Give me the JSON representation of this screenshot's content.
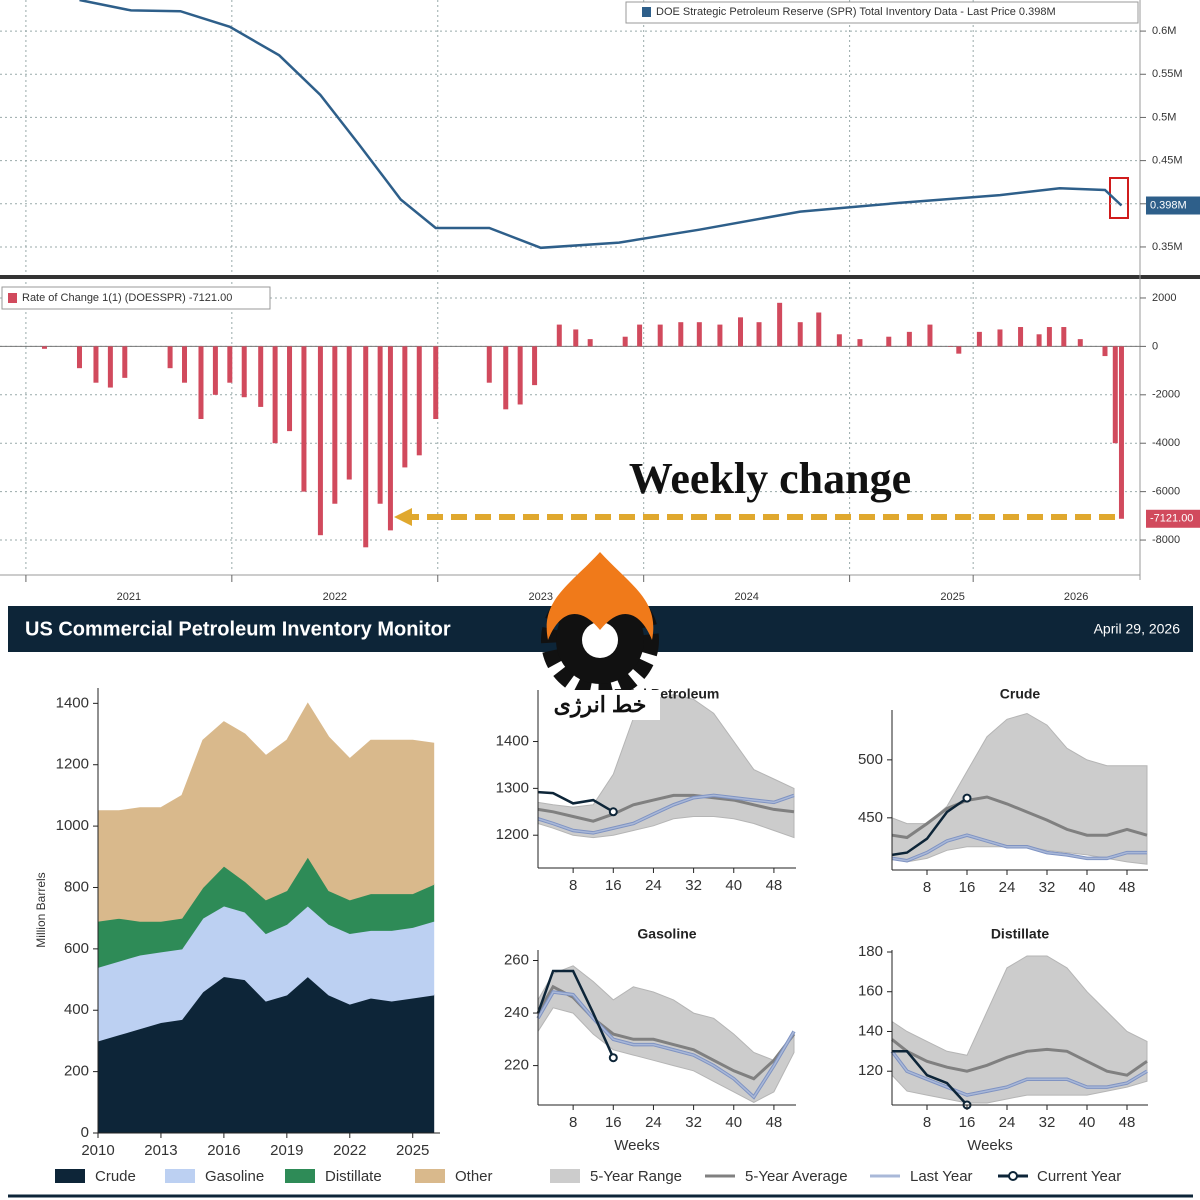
{
  "header": {
    "title": "US Commercial Petroleum Inventory Monitor",
    "date": "April 29, 2026"
  },
  "watermark": "خط انرژی",
  "chart_data": [
    {
      "type": "line",
      "x": [
        2021.26,
        2021.51,
        2021.75,
        2021.99,
        2022.23,
        2022.43,
        2022.62,
        2022.82,
        2022.99,
        2023.25,
        2023.5,
        2023.88,
        2024.27,
        2024.76,
        2025.24,
        2025.73,
        2026.02,
        2026.24,
        2026.32
      ],
      "series": [
        {
          "name": "DOE Strategic Petroleum Reserve (SPR) Total Inventory Data - Last Price 0.398M",
          "color": "#2e5f8a",
          "values": [
            0.636,
            0.624,
            0.623,
            0.605,
            0.572,
            0.526,
            0.468,
            0.405,
            0.372,
            0.372,
            0.349,
            0.355,
            0.37,
            0.391,
            0.401,
            0.41,
            0.418,
            0.416,
            0.398
          ],
          "value_labels": [
            null,
            null,
            null,
            null,
            null,
            null,
            null,
            null,
            null,
            null,
            null,
            null,
            null,
            null,
            null,
            null,
            null,
            null,
            "0.398M"
          ]
        }
      ],
      "xlim": [
        2020.874,
        2026.41
      ],
      "ylim": [
        0.321,
        0.636
      ],
      "yticks": [
        {
          "value": 0.35,
          "label": "0.35M"
        },
        {
          "value": 0.4,
          "label": "0.4M"
        },
        {
          "value": 0.45,
          "label": "0.45M"
        },
        {
          "value": 0.5,
          "label": "0.5M"
        },
        {
          "value": 0.55,
          "label": "0.55M"
        },
        {
          "value": 0.6,
          "label": "0.6M"
        }
      ],
      "grid": true
    },
    {
      "type": "bar",
      "x": [
        2021.09,
        2021.26,
        2021.34,
        2021.41,
        2021.48,
        2021.7,
        2021.77,
        2021.85,
        2021.92,
        2021.99,
        2022.06,
        2022.14,
        2022.21,
        2022.28,
        2022.35,
        2022.43,
        2022.5,
        2022.57,
        2022.65,
        2022.72,
        2022.77,
        2022.84,
        2022.91,
        2022.99,
        2023.25,
        2023.33,
        2023.4,
        2023.47,
        2023.59,
        2023.67,
        2023.74,
        2023.91,
        2023.98,
        2024.08,
        2024.18,
        2024.27,
        2024.37,
        2024.47,
        2024.56,
        2024.66,
        2024.76,
        2024.85,
        2024.95,
        2025.05,
        2025.19,
        2025.29,
        2025.39,
        2025.49,
        2025.53,
        2025.63,
        2025.73,
        2025.83,
        2025.92,
        2025.97,
        2026.04,
        2026.12,
        2026.24,
        2026.29,
        2026.32
      ],
      "series": [
        {
          "name": "Rate of Change 1(1) (DOESSPR) -7121.00",
          "color": "#d14a5d",
          "values": [
            -100,
            -900,
            -1500,
            -1700,
            -1300,
            -900,
            -1500,
            -3000,
            -2000,
            -1500,
            -2100,
            -2500,
            -4000,
            -3500,
            -6000,
            -7800,
            -6500,
            -5500,
            -8300,
            -6500,
            -7600,
            -5000,
            -4500,
            -3000,
            -1500,
            -2600,
            -2400,
            -1600,
            900,
            700,
            300,
            400,
            900,
            900,
            1000,
            1000,
            900,
            1200,
            1000,
            1800,
            1000,
            1400,
            500,
            300,
            400,
            600,
            900,
            0,
            -300,
            600,
            700,
            800,
            500,
            800,
            800,
            300,
            -400,
            -4000,
            -7121
          ],
          "value_labels": [
            null,
            null,
            null,
            null,
            null,
            null,
            null,
            null,
            null,
            null,
            null,
            null,
            null,
            null,
            null,
            null,
            null,
            null,
            null,
            null,
            null,
            null,
            null,
            null,
            null,
            null,
            null,
            null,
            null,
            null,
            null,
            null,
            null,
            null,
            null,
            null,
            null,
            null,
            null,
            null,
            null,
            null,
            null,
            null,
            null,
            null,
            null,
            null,
            null,
            null,
            null,
            null,
            null,
            null,
            null,
            null,
            null,
            null,
            "-7121.00"
          ]
        }
      ],
      "annotation": "Weekly change",
      "xlim": [
        2020.874,
        2026.41
      ],
      "ylim": [
        -9320,
        2660
      ],
      "xticks": [
        {
          "value": 2021.5,
          "label": "2021"
        },
        {
          "value": 2022.5,
          "label": "2022"
        },
        {
          "value": 2023.5,
          "label": "2023"
        },
        {
          "value": 2024.5,
          "label": "2024"
        },
        {
          "value": 2025.5,
          "label": "2025"
        },
        {
          "value": 2026.1,
          "label": "2026"
        }
      ],
      "yticks": [
        -8000,
        -6000,
        -4000,
        -2000,
        0,
        2000
      ],
      "grid": true
    },
    {
      "type": "stacked_area",
      "y_label": "Million Barrels",
      "x": [
        2010,
        2011,
        2012,
        2013,
        2014,
        2015,
        2016,
        2017,
        2018,
        2019,
        2020,
        2021,
        2022,
        2023,
        2024,
        2025,
        2026
      ],
      "series": [
        {
          "name": "Crude",
          "color": "#0d2538",
          "values": [
            300,
            320,
            340,
            360,
            370,
            460,
            510,
            500,
            430,
            450,
            510,
            450,
            420,
            440,
            430,
            440,
            450
          ]
        },
        {
          "name": "Gasoline",
          "color": "#bcd0f2",
          "values": [
            240,
            240,
            240,
            230,
            230,
            240,
            230,
            220,
            220,
            230,
            230,
            230,
            230,
            220,
            230,
            230,
            240
          ]
        },
        {
          "name": "Distillate",
          "color": "#2e8b57",
          "values": [
            150,
            140,
            110,
            100,
            100,
            100,
            130,
            100,
            110,
            110,
            160,
            110,
            110,
            120,
            120,
            110,
            120
          ]
        },
        {
          "name": "Other",
          "color": "#d9b98c",
          "values": [
            360,
            350,
            370,
            370,
            400,
            480,
            470,
            480,
            470,
            490,
            500,
            500,
            460,
            500,
            500,
            500,
            460
          ]
        }
      ],
      "xlim": [
        2010,
        2026.3
      ],
      "ylim": [
        0,
        1450
      ],
      "xticks": [
        2010,
        2013,
        2016,
        2019,
        2022,
        2025
      ],
      "yticks": [
        0,
        200,
        400,
        600,
        800,
        1000,
        1200,
        1400
      ]
    },
    {
      "type": "band",
      "title": "Total Petroleum",
      "x": [
        1,
        4,
        8,
        12,
        16,
        20,
        24,
        28,
        32,
        36,
        40,
        44,
        48,
        52
      ],
      "series": [
        {
          "name": "5-Year Range",
          "color": "#cccccc",
          "low": [
            1225,
            1215,
            1200,
            1195,
            1200,
            1210,
            1220,
            1235,
            1240,
            1240,
            1235,
            1225,
            1210,
            1195
          ],
          "high": [
            1270,
            1265,
            1260,
            1265,
            1330,
            1450,
            1490,
            1500,
            1490,
            1460,
            1400,
            1340,
            1320,
            1300
          ]
        },
        {
          "name": "5-Year Average",
          "color": "#808080",
          "values": [
            1255,
            1250,
            1240,
            1230,
            1245,
            1265,
            1275,
            1285,
            1285,
            1280,
            1275,
            1265,
            1255,
            1250
          ]
        },
        {
          "name": "Last Year",
          "color": "#a9b8d8",
          "values": [
            1235,
            1225,
            1210,
            1205,
            1215,
            1225,
            1245,
            1265,
            1280,
            1285,
            1280,
            1275,
            1270,
            1285
          ]
        },
        {
          "name": "Current Year",
          "color": "#0d2538",
          "values": [
            1292,
            1290,
            1268,
            1275,
            1250,
            null,
            null,
            null,
            null,
            null,
            null,
            null,
            null,
            null
          ]
        }
      ],
      "xlim": [
        1,
        52.4
      ],
      "ylim": [
        1130,
        1510
      ],
      "xticks": [
        8,
        16,
        24,
        32,
        40,
        48
      ],
      "yticks": [
        1200,
        1300,
        1400
      ]
    },
    {
      "type": "band",
      "title": "Crude",
      "x": [
        1,
        4,
        8,
        12,
        16,
        20,
        24,
        28,
        32,
        36,
        40,
        44,
        48,
        52
      ],
      "series": [
        {
          "color": "#cccccc",
          "low": [
            415,
            412,
            415,
            422,
            425,
            425,
            425,
            425,
            422,
            420,
            418,
            415,
            412,
            410
          ],
          "high": [
            450,
            445,
            445,
            460,
            490,
            520,
            535,
            540,
            530,
            510,
            500,
            495,
            495,
            495
          ]
        },
        {
          "color": "#808080",
          "values": [
            435,
            433,
            445,
            458,
            465,
            468,
            462,
            455,
            448,
            440,
            435,
            435,
            440,
            435
          ]
        },
        {
          "color": "#a9b8d8",
          "values": [
            415,
            413,
            420,
            430,
            435,
            430,
            425,
            425,
            420,
            418,
            415,
            415,
            420,
            420
          ]
        },
        {
          "color": "#0d2538",
          "values": [
            418,
            420,
            432,
            455,
            467,
            null,
            null,
            null,
            null,
            null,
            null,
            null,
            null,
            null
          ]
        }
      ],
      "xlim": [
        1,
        52.2
      ],
      "ylim": [
        405,
        543
      ],
      "xticks": [
        8,
        16,
        24,
        32,
        40,
        48
      ],
      "yticks": [
        450,
        500
      ]
    },
    {
      "type": "band",
      "title": "Gasoline",
      "x_label": "Weeks",
      "x": [
        1,
        4,
        8,
        12,
        16,
        20,
        24,
        28,
        32,
        36,
        40,
        44,
        48,
        52
      ],
      "series": [
        {
          "color": "#cccccc",
          "low": [
            233,
            242,
            240,
            232,
            226,
            224,
            222,
            220,
            218,
            214,
            210,
            206,
            210,
            225
          ],
          "high": [
            245,
            255,
            258,
            252,
            245,
            250,
            248,
            245,
            240,
            238,
            232,
            225,
            222,
            232
          ]
        },
        {
          "color": "#808080",
          "values": [
            240,
            250,
            246,
            238,
            232,
            230,
            230,
            228,
            226,
            222,
            218,
            215,
            222,
            232
          ]
        },
        {
          "color": "#a9b8d8",
          "values": [
            238,
            248,
            247,
            238,
            230,
            228,
            228,
            226,
            224,
            220,
            215,
            208,
            220,
            233
          ]
        },
        {
          "color": "#0d2538",
          "values": [
            240,
            256,
            256,
            240,
            223,
            null,
            null,
            null,
            null,
            null,
            null,
            null,
            null,
            null
          ]
        }
      ],
      "xlim": [
        1,
        52.4
      ],
      "ylim": [
        205,
        264
      ],
      "xticks": [
        8,
        16,
        24,
        32,
        40,
        48
      ],
      "yticks": [
        220,
        240,
        260
      ]
    },
    {
      "type": "band",
      "title": "Distillate",
      "x_label": "Weeks",
      "x": [
        1,
        4,
        8,
        12,
        16,
        20,
        24,
        28,
        32,
        36,
        40,
        44,
        48,
        52
      ],
      "series": [
        {
          "color": "#cccccc",
          "low": [
            118,
            110,
            108,
            106,
            104,
            104,
            106,
            108,
            108,
            108,
            108,
            110,
            112,
            115
          ],
          "high": [
            145,
            140,
            135,
            130,
            128,
            150,
            172,
            178,
            178,
            172,
            160,
            150,
            140,
            135
          ]
        },
        {
          "color": "#808080",
          "values": [
            136,
            130,
            125,
            122,
            120,
            123,
            127,
            130,
            131,
            130,
            125,
            120,
            118,
            125
          ]
        },
        {
          "color": "#a9b8d8",
          "values": [
            130,
            120,
            116,
            112,
            108,
            110,
            112,
            116,
            116,
            116,
            112,
            112,
            114,
            120
          ]
        },
        {
          "color": "#0d2538",
          "values": [
            130,
            130,
            118,
            114,
            103,
            null,
            null,
            null,
            null,
            null,
            null,
            null,
            null,
            null
          ]
        }
      ],
      "xlim": [
        1,
        52.2
      ],
      "ylim": [
        103,
        181
      ],
      "xticks": [
        8,
        16,
        24,
        32,
        40,
        48
      ],
      "yticks": [
        120,
        140,
        160,
        180
      ]
    }
  ]
}
